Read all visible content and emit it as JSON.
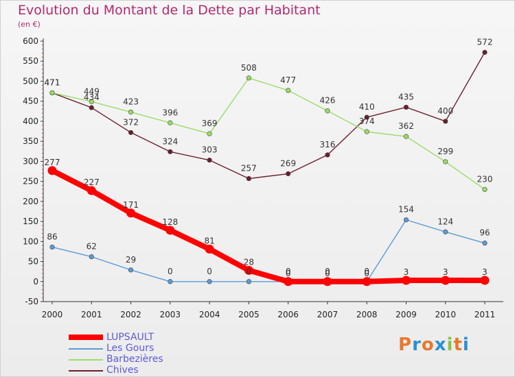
{
  "title": "Evolution du Montant de la Dette par Habitant",
  "subtitle": "(en €)",
  "logo": "Proxiti",
  "chart_data": {
    "type": "line",
    "title": "Evolution du Montant de la Dette par Habitant",
    "ylabel": "(en €)",
    "xlabel": "",
    "x": [
      "2000",
      "2001",
      "2002",
      "2003",
      "2004",
      "2005",
      "2006",
      "2007",
      "2008",
      "2009",
      "2010",
      "2011"
    ],
    "ylim": [
      -50,
      600
    ],
    "yticks": [
      -50,
      0,
      50,
      100,
      150,
      200,
      250,
      300,
      350,
      400,
      450,
      500,
      550,
      600
    ],
    "grid": false,
    "legend": "bottom-left",
    "series": [
      {
        "name": "LUPSAULT",
        "color": "#ff0000",
        "values": [
          277,
          227,
          171,
          128,
          81,
          28,
          0,
          0,
          0,
          3,
          3,
          3
        ]
      },
      {
        "name": "Les Gours",
        "color": "#5b9bd5",
        "values": [
          86,
          62,
          29,
          0,
          0,
          0,
          0,
          0,
          0,
          154,
          124,
          96
        ]
      },
      {
        "name": "Barbezières",
        "color": "#99dd66",
        "values": [
          471,
          449,
          423,
          396,
          369,
          508,
          477,
          426,
          374,
          362,
          299,
          230
        ]
      },
      {
        "name": "Chives",
        "color": "#6b1f2a",
        "values": [
          471,
          434,
          372,
          324,
          303,
          257,
          269,
          316,
          410,
          435,
          400,
          572
        ]
      }
    ]
  }
}
